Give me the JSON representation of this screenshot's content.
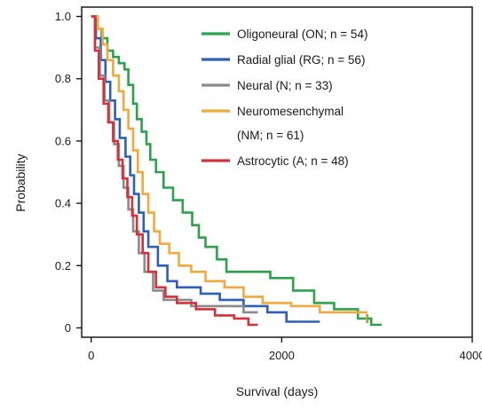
{
  "chart_data": {
    "type": "line",
    "title": "",
    "xlabel": "Survival (days)",
    "ylabel": "Probability",
    "xlim": [
      -100,
      4000
    ],
    "ylim": [
      -0.03,
      1.03
    ],
    "x_ticks": [
      0,
      2000,
      4000
    ],
    "x_tick_labels": [
      "0",
      "2000",
      "4000"
    ],
    "y_ticks": [
      0,
      0.2,
      0.4,
      0.6,
      0.8,
      1.0
    ],
    "y_tick_labels": [
      "0",
      "0.2",
      "0.4",
      "0.6",
      "0.8",
      "1.0"
    ],
    "grid": false,
    "legend_position": "top-right",
    "series": [
      {
        "name": "Oligoneural (ON; n = 54)",
        "legend_line1": "Oligoneural (ON; n = 54)",
        "legend_line2": "",
        "color": "#2ca34a",
        "steps": [
          [
            0,
            1.0
          ],
          [
            60,
            0.96
          ],
          [
            110,
            0.93
          ],
          [
            170,
            0.89
          ],
          [
            230,
            0.87
          ],
          [
            290,
            0.85
          ],
          [
            350,
            0.83
          ],
          [
            390,
            0.78
          ],
          [
            440,
            0.72
          ],
          [
            480,
            0.67
          ],
          [
            530,
            0.63
          ],
          [
            580,
            0.59
          ],
          [
            620,
            0.54
          ],
          [
            680,
            0.5
          ],
          [
            760,
            0.45
          ],
          [
            860,
            0.41
          ],
          [
            960,
            0.37
          ],
          [
            1060,
            0.33
          ],
          [
            1130,
            0.29
          ],
          [
            1200,
            0.26
          ],
          [
            1320,
            0.22
          ],
          [
            1420,
            0.18
          ],
          [
            1880,
            0.16
          ],
          [
            2120,
            0.12
          ],
          [
            2340,
            0.08
          ],
          [
            2550,
            0.06
          ],
          [
            2800,
            0.03
          ],
          [
            2940,
            0.01
          ],
          [
            3050,
            0.01
          ]
        ],
        "censored": [
          [
            2900,
            0.03
          ]
        ]
      },
      {
        "name": "Radial glial (RG; n = 56)",
        "legend_line1": "Radial glial (RG; n = 56)",
        "legend_line2": "",
        "color": "#2e5fb8",
        "steps": [
          [
            0,
            1.0
          ],
          [
            50,
            0.93
          ],
          [
            100,
            0.86
          ],
          [
            150,
            0.79
          ],
          [
            200,
            0.73
          ],
          [
            250,
            0.67
          ],
          [
            300,
            0.61
          ],
          [
            360,
            0.55
          ],
          [
            410,
            0.49
          ],
          [
            450,
            0.43
          ],
          [
            500,
            0.37
          ],
          [
            550,
            0.31
          ],
          [
            600,
            0.26
          ],
          [
            700,
            0.2
          ],
          [
            800,
            0.15
          ],
          [
            900,
            0.13
          ],
          [
            1150,
            0.11
          ],
          [
            1350,
            0.09
          ],
          [
            1600,
            0.07
          ],
          [
            1850,
            0.05
          ],
          [
            2050,
            0.02
          ],
          [
            2400,
            0.02
          ]
        ],
        "censored": []
      },
      {
        "name": "Neural (N; n = 33)",
        "legend_line1": "Neural (N; n = 33)",
        "legend_line2": "",
        "color": "#8a8a8a",
        "steps": [
          [
            0,
            1.0
          ],
          [
            40,
            0.9
          ],
          [
            90,
            0.81
          ],
          [
            140,
            0.73
          ],
          [
            190,
            0.66
          ],
          [
            240,
            0.59
          ],
          [
            290,
            0.52
          ],
          [
            340,
            0.45
          ],
          [
            390,
            0.38
          ],
          [
            440,
            0.31
          ],
          [
            500,
            0.24
          ],
          [
            560,
            0.18
          ],
          [
            650,
            0.12
          ],
          [
            760,
            0.09
          ],
          [
            900,
            0.09
          ],
          [
            1050,
            0.07
          ],
          [
            1400,
            0.07
          ],
          [
            1600,
            0.05
          ],
          [
            1750,
            0.05
          ]
        ],
        "censored": []
      },
      {
        "name": "Neuromesenchymal (NM; n = 61)",
        "legend_line1": "Neuromesenchymal",
        "legend_line2": "(NM; n = 61)",
        "color": "#f2a93b",
        "steps": [
          [
            0,
            1.0
          ],
          [
            70,
            0.96
          ],
          [
            120,
            0.91
          ],
          [
            170,
            0.86
          ],
          [
            230,
            0.81
          ],
          [
            290,
            0.76
          ],
          [
            340,
            0.7
          ],
          [
            390,
            0.64
          ],
          [
            440,
            0.57
          ],
          [
            490,
            0.5
          ],
          [
            540,
            0.43
          ],
          [
            600,
            0.37
          ],
          [
            660,
            0.31
          ],
          [
            720,
            0.27
          ],
          [
            820,
            0.24
          ],
          [
            920,
            0.2
          ],
          [
            1050,
            0.18
          ],
          [
            1200,
            0.15
          ],
          [
            1400,
            0.13
          ],
          [
            1600,
            0.1
          ],
          [
            1800,
            0.08
          ],
          [
            2100,
            0.07
          ],
          [
            2400,
            0.05
          ],
          [
            2900,
            0.05
          ]
        ],
        "censored": [
          [
            2890,
            0.03
          ]
        ]
      },
      {
        "name": "Astrocytic (A; n = 48)",
        "legend_line1": "Astrocytic (A; n = 48)",
        "legend_line2": "",
        "color": "#d8303a",
        "steps": [
          [
            0,
            1.0
          ],
          [
            40,
            0.89
          ],
          [
            80,
            0.8
          ],
          [
            130,
            0.72
          ],
          [
            180,
            0.66
          ],
          [
            230,
            0.6
          ],
          [
            280,
            0.54
          ],
          [
            330,
            0.48
          ],
          [
            380,
            0.42
          ],
          [
            430,
            0.36
          ],
          [
            480,
            0.3
          ],
          [
            540,
            0.24
          ],
          [
            600,
            0.18
          ],
          [
            680,
            0.13
          ],
          [
            780,
            0.1
          ],
          [
            900,
            0.08
          ],
          [
            1000,
            0.08
          ],
          [
            1100,
            0.06
          ],
          [
            1300,
            0.04
          ],
          [
            1500,
            0.03
          ],
          [
            1650,
            0.01
          ],
          [
            1750,
            0.01
          ]
        ],
        "censored": []
      }
    ]
  }
}
